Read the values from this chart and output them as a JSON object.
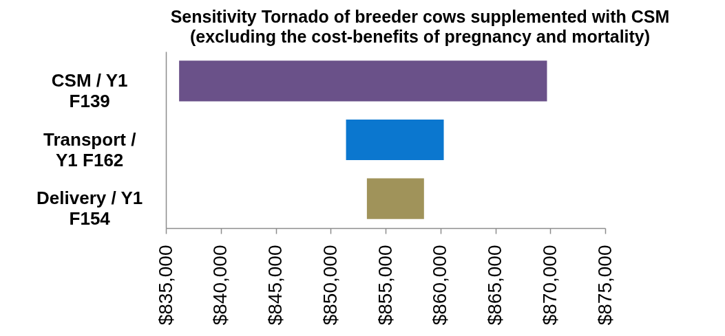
{
  "chart_data": {
    "type": "bar",
    "orientation": "horizontal",
    "title": "Sensitivity Tornado of breeder cows supplemented with CSM",
    "subtitle": "(excluding the cost-benefits of pregnancy and mortality)",
    "categories": [
      "CSM / Y1 F139",
      "Transport / Y1 F162",
      "Delivery / Y1 F154"
    ],
    "base": [
      836200,
      851400,
      853300
    ],
    "values": [
      33500,
      8900,
      5200
    ],
    "colors": [
      "#6a5189",
      "#0b77cf",
      "#a0935a"
    ],
    "xlim": [
      835000,
      875000
    ],
    "xticks": [
      {
        "value": 835000,
        "label": "$835,000"
      },
      {
        "value": 840000,
        "label": "$840,000"
      },
      {
        "value": 845000,
        "label": "$845,000"
      },
      {
        "value": 850000,
        "label": "$850,000"
      },
      {
        "value": 855000,
        "label": "$855,000"
      },
      {
        "value": 860000,
        "label": "$860,000"
      },
      {
        "value": 865000,
        "label": "$865,000"
      },
      {
        "value": 870000,
        "label": "$870,000"
      },
      {
        "value": 875000,
        "label": "$875,000"
      }
    ]
  }
}
